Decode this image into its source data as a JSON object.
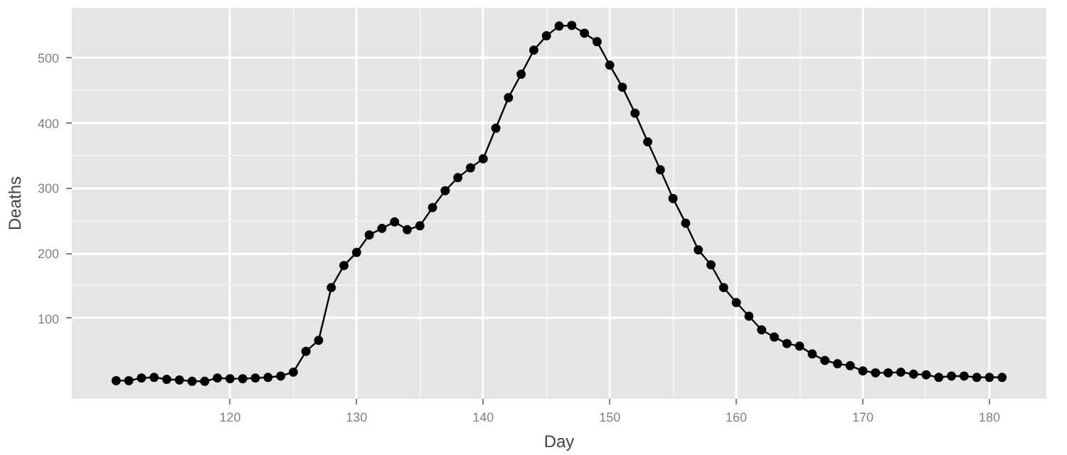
{
  "chart_data": {
    "type": "line",
    "xlabel": "Day",
    "ylabel": "Deaths",
    "x": [
      111,
      112,
      113,
      114,
      115,
      116,
      117,
      118,
      119,
      120,
      121,
      122,
      123,
      124,
      125,
      126,
      127,
      128,
      129,
      130,
      131,
      132,
      133,
      134,
      135,
      136,
      137,
      138,
      139,
      140,
      141,
      142,
      143,
      144,
      145,
      146,
      147,
      148,
      149,
      150,
      151,
      152,
      153,
      154,
      155,
      156,
      157,
      158,
      159,
      160,
      161,
      162,
      163,
      164,
      165,
      166,
      167,
      168,
      169,
      170,
      171,
      172,
      173,
      174,
      175,
      176,
      177,
      178,
      179,
      180,
      181
    ],
    "series": [
      {
        "color": "#000000",
        "values": [
          4,
          4,
          8,
          9,
          6,
          5,
          3,
          3,
          8,
          7,
          7,
          8,
          9,
          11,
          17,
          49,
          66,
          147,
          181,
          201,
          228,
          238,
          248,
          236,
          242,
          270,
          296,
          316,
          331,
          345,
          392,
          439,
          475,
          512,
          534,
          549,
          550,
          538,
          525,
          489,
          455,
          415,
          371,
          328,
          284,
          246,
          205,
          182,
          147,
          124,
          103,
          82,
          71,
          61,
          57,
          45,
          35,
          30,
          27,
          19,
          16,
          16,
          17,
          14,
          13,
          9,
          11,
          11,
          9,
          9,
          9
        ]
      }
    ],
    "xlim": [
      107.5,
      184.5
    ],
    "ylim": [
      -24,
      577
    ],
    "xticks": [
      120,
      130,
      140,
      150,
      160,
      170,
      180
    ],
    "yticks": [
      100,
      200,
      300,
      400,
      500
    ],
    "grid": true,
    "marker": "circle",
    "line_style": "solid"
  }
}
